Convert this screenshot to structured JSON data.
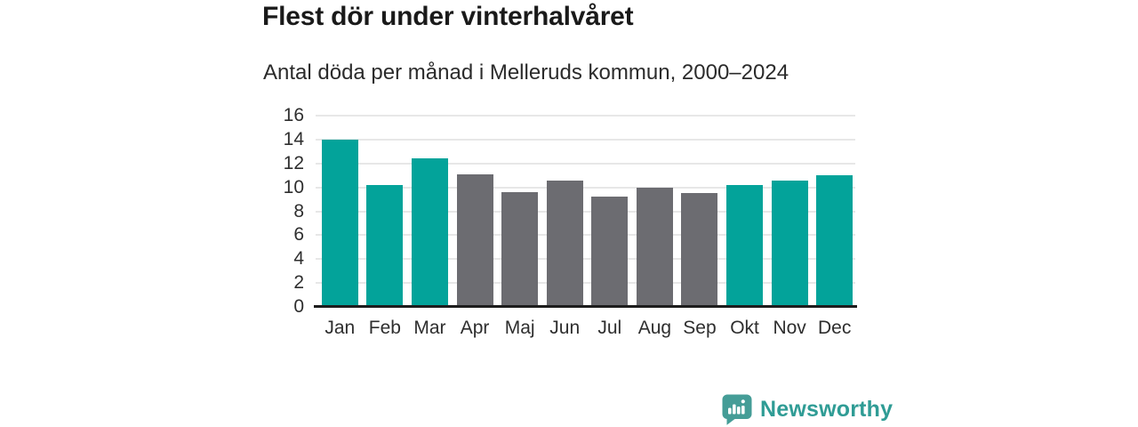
{
  "header": {
    "title": "Flest dör under vinterhalvåret",
    "subtitle": "Antal döda per månad i Melleruds kommun, 2000–2024"
  },
  "brand": {
    "name": "Newsworthy",
    "logo_icon": "bar-chart-speech-bubble-icon"
  },
  "colors": {
    "winter_bar_teal": "#03a39a",
    "summer_bar_gray": "#6c6c71",
    "gridline": "#e7e7e7",
    "axis_line": "#1d1d1d",
    "title_text": "#1a1a1a",
    "subtitle_text": "#2b2b2b",
    "tick_text": "#2e2e2e",
    "brand_teal": "#2f9c95",
    "logo_bubble_teal": "#459d97",
    "background": "#ffffff"
  },
  "chart_data": {
    "type": "bar",
    "title": "Flest dör under vinterhalvåret",
    "subtitle": "Antal döda per månad i Melleruds kommun, 2000–2024",
    "categories": [
      "Jan",
      "Feb",
      "Mar",
      "Apr",
      "Maj",
      "Jun",
      "Jul",
      "Aug",
      "Sep",
      "Okt",
      "Nov",
      "Dec"
    ],
    "values": [
      14.0,
      10.2,
      12.4,
      11.1,
      9.6,
      10.6,
      9.2,
      10.0,
      9.5,
      10.2,
      10.6,
      11.0
    ],
    "bar_colors": [
      "#03a39a",
      "#03a39a",
      "#03a39a",
      "#6c6c71",
      "#6c6c71",
      "#6c6c71",
      "#6c6c71",
      "#6c6c71",
      "#6c6c71",
      "#03a39a",
      "#03a39a",
      "#03a39a"
    ],
    "xlabel": "",
    "ylabel": "",
    "ylim": [
      0,
      16
    ],
    "yticks": [
      0,
      2,
      4,
      6,
      8,
      10,
      12,
      14,
      16
    ],
    "grid": true,
    "legend": "none"
  }
}
